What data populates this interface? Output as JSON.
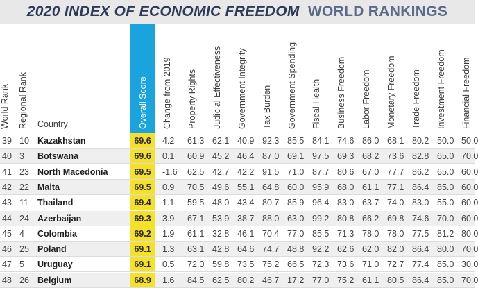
{
  "title": {
    "bold_part": "2020 INDEX OF",
    "italic_part": "ECONOMIC FREEDOM",
    "rest": "WORLD RANKINGS"
  },
  "columns": [
    "World Rank",
    "Regional Rank",
    "Country",
    "Overall Score",
    "Change from 2019",
    "Property Rights",
    "Judicial Effectiveness",
    "Government Integrity",
    "Tax Burden",
    "Government Spending",
    "Fiscal Health",
    "Business Freedom",
    "Labor Freedom",
    "Monetary Freedom",
    "Trade Freedom",
    "Investment Freedom",
    "Financial Freedom"
  ],
  "rows": [
    [
      "39",
      "10",
      "Kazakhstan",
      "69.6",
      "4.2",
      "61.3",
      "62.1",
      "40.9",
      "92.3",
      "85.5",
      "84.1",
      "74.6",
      "86.0",
      "68.1",
      "80.2",
      "50.0",
      "50.0"
    ],
    [
      "40",
      "3",
      "Botswana",
      "69.6",
      "0.1",
      "60.9",
      "45.2",
      "46.4",
      "87.0",
      "69.1",
      "97.5",
      "69.3",
      "68.2",
      "73.6",
      "82.8",
      "65.0",
      "70.0"
    ],
    [
      "41",
      "23",
      "North Macedonia",
      "69.5",
      "-1.6",
      "62.5",
      "42.7",
      "42.2",
      "91.5",
      "71.0",
      "87.7",
      "80.6",
      "67.0",
      "77.7",
      "86.2",
      "65.0",
      "60.0"
    ],
    [
      "42",
      "22",
      "Malta",
      "69.5",
      "0.9",
      "70.5",
      "49.6",
      "55.1",
      "64.8",
      "60.0",
      "95.9",
      "68.0",
      "61.1",
      "77.1",
      "86.4",
      "85.0",
      "60.0"
    ],
    [
      "43",
      "11",
      "Thailand",
      "69.4",
      "1.1",
      "59.5",
      "48.0",
      "43.4",
      "80.7",
      "85.9",
      "96.4",
      "83.0",
      "63.7",
      "74.0",
      "83.0",
      "55.0",
      "60.0"
    ],
    [
      "44",
      "24",
      "Azerbaijan",
      "69.3",
      "3.9",
      "67.1",
      "53.9",
      "38.7",
      "88.0",
      "63.0",
      "99.2",
      "80.8",
      "66.2",
      "69.8",
      "74.6",
      "70.0",
      "60.0"
    ],
    [
      "45",
      "4",
      "Colombia",
      "69.2",
      "1.9",
      "61.1",
      "32.8",
      "46.1",
      "70.4",
      "77.0",
      "85.5",
      "71.3",
      "78.0",
      "78.0",
      "77.5",
      "81.2",
      "80.0"
    ],
    [
      "46",
      "25",
      "Poland",
      "69.1",
      "1.3",
      "63.1",
      "42.8",
      "64.6",
      "74.7",
      "48.8",
      "92.2",
      "62.6",
      "62.0",
      "82.0",
      "86.4",
      "80.0",
      "70.0"
    ],
    [
      "47",
      "5",
      "Uruguay",
      "69.1",
      "0.5",
      "72.0",
      "59.8",
      "73.5",
      "75.2",
      "66.5",
      "72.3",
      "73.6",
      "71.0",
      "72.7",
      "77.4",
      "85.0",
      "30.0"
    ],
    [
      "48",
      "26",
      "Belgium",
      "68.9",
      "1.6",
      "84.5",
      "62.5",
      "80.2",
      "46.7",
      "17.2",
      "77.0",
      "75.2",
      "61.1",
      "80.5",
      "86.4",
      "85.0",
      "70.0"
    ]
  ]
}
